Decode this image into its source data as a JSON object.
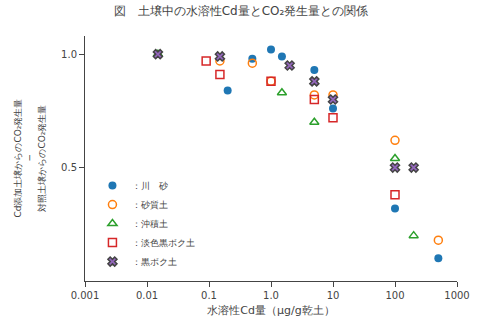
{
  "chart_data": {
    "type": "scatter",
    "title": "図　土壌中の水溶性Cd量とCO₂発生量との関係",
    "xlabel": "水溶性Cd量（μg/g乾土）",
    "annotations": [
      "Cd添加土壌からのCO₂発生量",
      "─",
      "対照土壌からのCO₂発生量"
    ],
    "log": "x",
    "grid": false,
    "legend": "lower left",
    "xlim": [
      0.001,
      1000
    ],
    "xticks": [
      0.001,
      0.01,
      0.1,
      {
        "value": 1.0,
        "label": "1.0"
      },
      10,
      100,
      1000
    ],
    "ylim": [
      0.0,
      1.08
    ],
    "yticks": [
      0.5,
      {
        "value": 1.0,
        "label": "1.0"
      }
    ],
    "series": [
      {
        "name": "：川　砂",
        "marker": "circle",
        "x": [
          0.2,
          0.5,
          1.0,
          1.5,
          5.0,
          10.0,
          100.0,
          500.0
        ],
        "values": [
          0.84,
          0.98,
          1.02,
          0.99,
          0.93,
          0.76,
          0.32,
          0.1
        ]
      },
      {
        "name": "：砂質土",
        "marker": "circle-open",
        "x": [
          0.15,
          0.5,
          1.0,
          5.0,
          10.0,
          100.0,
          500.0
        ],
        "values": [
          0.97,
          0.96,
          0.88,
          0.82,
          0.82,
          0.62,
          0.18
        ]
      },
      {
        "name": "：沖積土",
        "marker": "triangle-up-open",
        "x": [
          0.015,
          1.5,
          5.0,
          100.0,
          200.0
        ],
        "values": [
          1.0,
          0.83,
          0.7,
          0.54,
          0.2
        ]
      },
      {
        "name": "：淡色黒ボク土",
        "marker": "square-open",
        "x": [
          0.09,
          0.15,
          1.0,
          5.0,
          10.0,
          100.0
        ],
        "values": [
          0.97,
          0.91,
          0.88,
          0.8,
          0.72,
          0.38
        ]
      },
      {
        "name": "：黒ボク土",
        "marker": "x",
        "x": [
          0.015,
          0.15,
          2.0,
          5.0,
          10.0,
          100.0,
          200.0
        ],
        "values": [
          1.0,
          0.99,
          0.95,
          0.88,
          0.8,
          0.5,
          0.5
        ]
      }
    ]
  }
}
